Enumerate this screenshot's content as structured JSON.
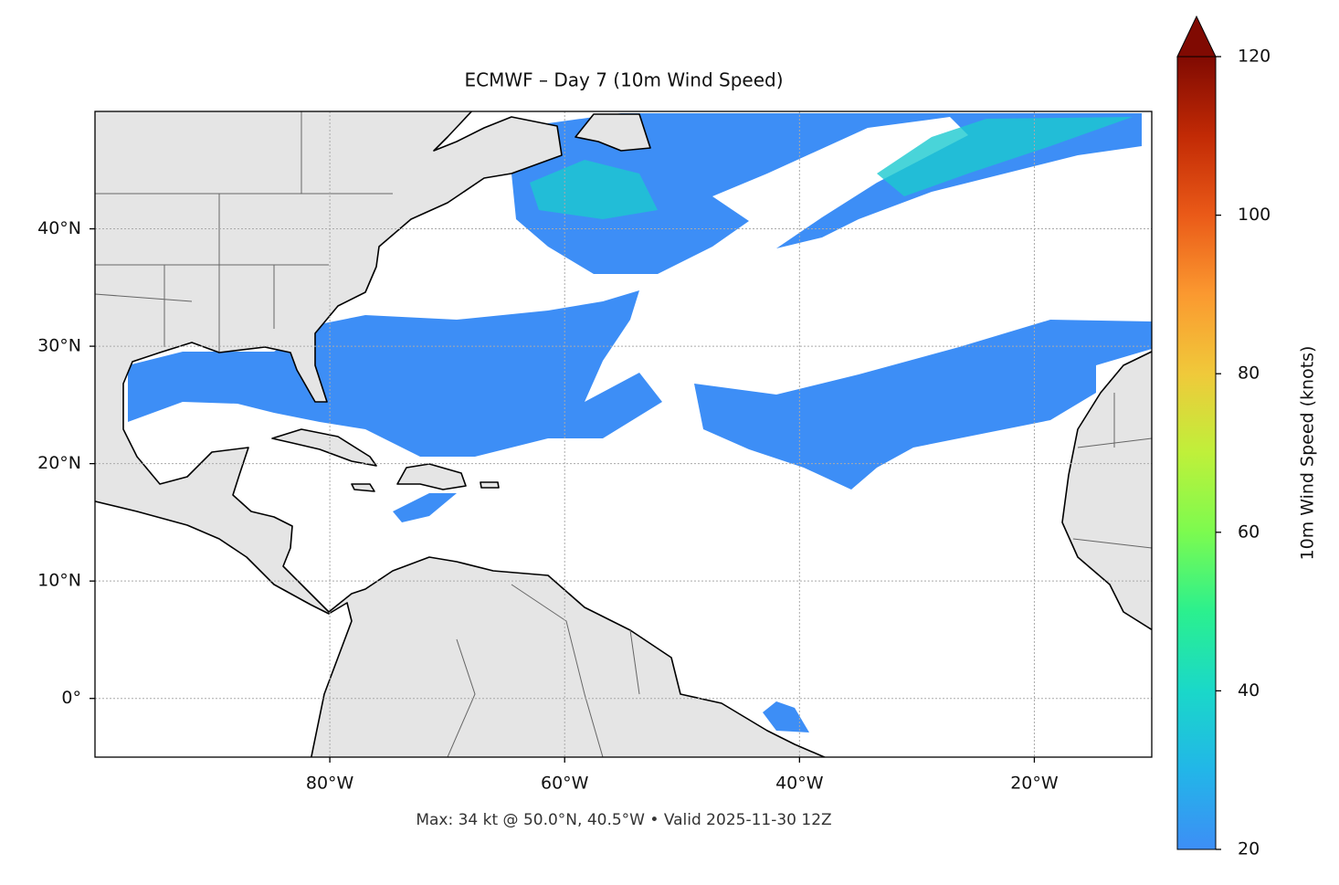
{
  "chart_data": {
    "type": "map",
    "title": "ECMWF – Day 7 (10m Wind Speed)",
    "footer": "Max: 34 kt @ 50.0°N, 40.5°W • Valid 2025-11-30 12Z",
    "xlim": [
      -100,
      -10
    ],
    "ylim": [
      -5,
      50
    ],
    "xticks": [
      {
        "value": -80,
        "label": "80°W"
      },
      {
        "value": -60,
        "label": "60°W"
      },
      {
        "value": -40,
        "label": "40°W"
      },
      {
        "value": -20,
        "label": "20°W"
      }
    ],
    "yticks": [
      {
        "value": 0,
        "label": "0°"
      },
      {
        "value": 10,
        "label": "10°N"
      },
      {
        "value": 20,
        "label": "20°N"
      },
      {
        "value": 30,
        "label": "30°N"
      },
      {
        "value": 40,
        "label": "40°N"
      }
    ],
    "grid": true,
    "colorbar": {
      "label": "10m Wind Speed (knots)",
      "lim": [
        20,
        120
      ],
      "ticks": [
        20,
        40,
        60,
        80,
        100,
        120
      ]
    }
  }
}
